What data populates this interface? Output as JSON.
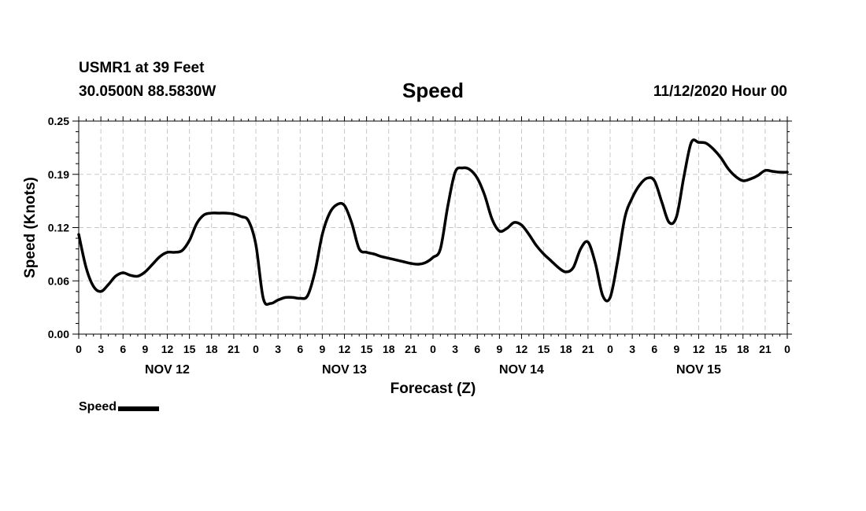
{
  "header": {
    "station": "USMR1 at 39 Feet",
    "coords": "30.0500N 88.5830W",
    "title": "Speed",
    "run_time": "11/12/2020 Hour 00"
  },
  "chart_data": {
    "type": "line",
    "title": "Speed",
    "xlabel": "Forecast (Z)",
    "ylabel": "Speed (Knots)",
    "ylim": [
      0,
      0.25
    ],
    "xlim": [
      0,
      96
    ],
    "grid": true,
    "legend_position": "bottom-left",
    "y_ticks": [
      "0.00",
      "0.06",
      "0.12",
      "0.19",
      "0.25"
    ],
    "x_ticks": [
      "0",
      "3",
      "6",
      "9",
      "12",
      "15",
      "18",
      "21",
      "0",
      "3",
      "6",
      "9",
      "12",
      "15",
      "18",
      "21",
      "0",
      "3",
      "6",
      "9",
      "12",
      "15",
      "18",
      "21",
      "0",
      "3",
      "6",
      "9",
      "12",
      "15",
      "18",
      "21",
      "0"
    ],
    "day_labels": [
      {
        "hour": 12,
        "label": "NOV 12"
      },
      {
        "hour": 36,
        "label": "NOV 13"
      },
      {
        "hour": 60,
        "label": "NOV 14"
      },
      {
        "hour": 84,
        "label": "NOV 15"
      }
    ],
    "series": [
      {
        "name": "Speed",
        "color": "#000000",
        "x": [
          0,
          1,
          2,
          3,
          4,
          5,
          6,
          7,
          8,
          9,
          10,
          11,
          12,
          13,
          14,
          15,
          16,
          17,
          18,
          19,
          20,
          21,
          22,
          23,
          24,
          25,
          26,
          27,
          28,
          29,
          30,
          31,
          32,
          33,
          34,
          35,
          36,
          37,
          38,
          39,
          40,
          41,
          42,
          43,
          44,
          45,
          46,
          47,
          48,
          49,
          50,
          51,
          52,
          53,
          54,
          55,
          56,
          57,
          58,
          59,
          60,
          61,
          62,
          63,
          64,
          65,
          66,
          67,
          68,
          69,
          70,
          71,
          72,
          73,
          74,
          75,
          76,
          77,
          78,
          79,
          80,
          81,
          82,
          83,
          84,
          85,
          86,
          87,
          88,
          89,
          90,
          91,
          92,
          93,
          94,
          95,
          96
        ],
        "values": [
          0.117,
          0.078,
          0.056,
          0.05,
          0.058,
          0.068,
          0.072,
          0.069,
          0.068,
          0.073,
          0.082,
          0.091,
          0.096,
          0.096,
          0.098,
          0.11,
          0.13,
          0.14,
          0.142,
          0.142,
          0.142,
          0.141,
          0.138,
          0.133,
          0.105,
          0.042,
          0.036,
          0.04,
          0.043,
          0.043,
          0.042,
          0.045,
          0.073,
          0.117,
          0.142,
          0.152,
          0.151,
          0.13,
          0.1,
          0.096,
          0.094,
          0.091,
          0.089,
          0.087,
          0.085,
          0.083,
          0.082,
          0.084,
          0.09,
          0.1,
          0.15,
          0.19,
          0.195,
          0.193,
          0.183,
          0.163,
          0.135,
          0.121,
          0.124,
          0.131,
          0.128,
          0.117,
          0.104,
          0.094,
          0.086,
          0.078,
          0.073,
          0.078,
          0.1,
          0.108,
          0.083,
          0.045,
          0.043,
          0.085,
          0.137,
          0.16,
          0.175,
          0.183,
          0.18,
          0.155,
          0.131,
          0.138,
          0.185,
          0.225,
          0.225,
          0.224,
          0.217,
          0.207,
          0.194,
          0.185,
          0.18,
          0.182,
          0.186,
          0.192,
          0.191,
          0.19,
          0.19
        ]
      }
    ]
  }
}
